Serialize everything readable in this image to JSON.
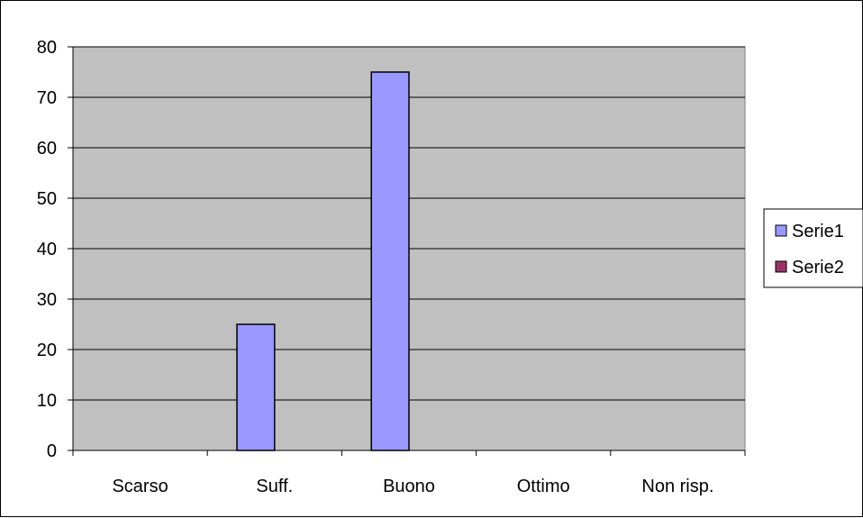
{
  "chart_data": {
    "type": "bar",
    "categories": [
      "Scarso",
      "Suff.",
      "Buono",
      "Ottimo",
      "Non risp."
    ],
    "series": [
      {
        "name": "Serie1",
        "values": [
          0,
          25,
          75,
          0,
          0
        ],
        "color": "#9999ff"
      },
      {
        "name": "Serie2",
        "values": [
          0,
          0,
          0,
          0,
          0
        ],
        "color": "#993366"
      }
    ],
    "title": "",
    "xlabel": "",
    "ylabel": "",
    "ylim": [
      0,
      80
    ],
    "yticks": [
      "0",
      "10",
      "20",
      "30",
      "40",
      "50",
      "60",
      "70",
      "80"
    ],
    "grid": true,
    "legend_position": "right",
    "plot_background": "#c0c0c0"
  }
}
